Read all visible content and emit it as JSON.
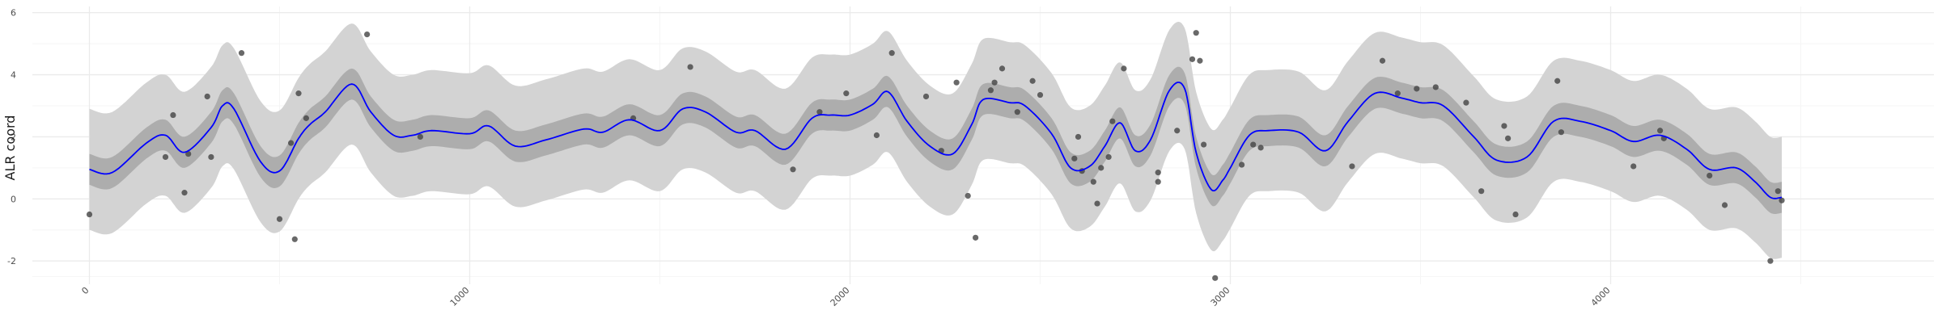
{
  "chart_data": {
    "type": "line",
    "title": "",
    "xlabel": "",
    "ylabel": "ALR coord",
    "xlim": [
      -150,
      4850
    ],
    "ylim": [
      -2.75,
      6.2
    ],
    "x_ticks": [
      0,
      1000,
      2000,
      3000,
      4000
    ],
    "y_ticks": [
      -2,
      0,
      2,
      4,
      6
    ],
    "grid": true,
    "colors": {
      "mean_line": "#0000ff",
      "inner_band": "#adadad",
      "outer_band": "#d3d3d3",
      "points": "#444444",
      "grid_major": "#ebebeb",
      "grid_minor": "#f5f5f5"
    },
    "mean": {
      "x": [
        0,
        60,
        150,
        200,
        250,
        320,
        350,
        380,
        450,
        500,
        550,
        580,
        620,
        690,
        740,
        800,
        850,
        900,
        1000,
        1050,
        1120,
        1200,
        1300,
        1350,
        1420,
        1500,
        1560,
        1620,
        1700,
        1750,
        1830,
        1900,
        1950,
        2000,
        2060,
        2100,
        2150,
        2210,
        2270,
        2320,
        2350,
        2420,
        2460,
        2530,
        2580,
        2630,
        2670,
        2710,
        2750,
        2790,
        2840,
        2880,
        2910,
        2950,
        2980,
        3000,
        3050,
        3100,
        3180,
        3250,
        3310,
        3380,
        3450,
        3500,
        3560,
        3640,
        3700,
        3780,
        3850,
        3920,
        4000,
        4060,
        4130,
        4200,
        4260,
        4330,
        4380,
        4420,
        4450
      ],
      "y": [
        0.95,
        0.85,
        1.8,
        2.05,
        1.5,
        2.3,
        3.0,
        2.9,
        1.2,
        0.9,
        1.95,
        2.4,
        2.8,
        3.7,
        2.8,
        2.05,
        2.05,
        2.2,
        2.1,
        2.35,
        1.7,
        1.9,
        2.25,
        2.15,
        2.55,
        2.2,
        2.9,
        2.8,
        2.15,
        2.2,
        1.6,
        2.6,
        2.7,
        2.7,
        3.05,
        3.45,
        2.5,
        1.7,
        1.45,
        2.4,
        3.2,
        3.1,
        3.0,
        2.1,
        1.0,
        1.05,
        1.7,
        2.45,
        1.55,
        1.9,
        3.5,
        3.55,
        1.5,
        0.3,
        0.6,
        1.0,
        2.05,
        2.2,
        2.15,
        1.55,
        2.5,
        3.4,
        3.25,
        3.1,
        3.0,
        2.0,
        1.25,
        1.35,
        2.5,
        2.5,
        2.2,
        1.85,
        2.05,
        1.6,
        0.95,
        1.0,
        0.55,
        0.05,
        0.05
      ]
    },
    "inner_band_halfwidth": 0.5,
    "outer_band_halfwidth": 1.95,
    "points": [
      {
        "x": 0,
        "y": -0.5
      },
      {
        "x": 200,
        "y": 1.35
      },
      {
        "x": 220,
        "y": 2.7
      },
      {
        "x": 250,
        "y": 0.2
      },
      {
        "x": 260,
        "y": 1.45
      },
      {
        "x": 310,
        "y": 3.3
      },
      {
        "x": 320,
        "y": 1.35
      },
      {
        "x": 400,
        "y": 4.7
      },
      {
        "x": 500,
        "y": -0.65
      },
      {
        "x": 530,
        "y": 1.8
      },
      {
        "x": 540,
        "y": -1.3
      },
      {
        "x": 550,
        "y": 3.4
      },
      {
        "x": 570,
        "y": 2.6
      },
      {
        "x": 730,
        "y": 5.3
      },
      {
        "x": 870,
        "y": 2.0
      },
      {
        "x": 1430,
        "y": 2.6
      },
      {
        "x": 1580,
        "y": 4.25
      },
      {
        "x": 1850,
        "y": 0.95
      },
      {
        "x": 1920,
        "y": 2.8
      },
      {
        "x": 1990,
        "y": 3.4
      },
      {
        "x": 2070,
        "y": 2.05
      },
      {
        "x": 2110,
        "y": 4.7
      },
      {
        "x": 2200,
        "y": 3.3
      },
      {
        "x": 2240,
        "y": 1.55
      },
      {
        "x": 2280,
        "y": 3.75
      },
      {
        "x": 2310,
        "y": 0.1
      },
      {
        "x": 2330,
        "y": -1.25
      },
      {
        "x": 2370,
        "y": 3.5
      },
      {
        "x": 2380,
        "y": 3.75
      },
      {
        "x": 2400,
        "y": 4.2
      },
      {
        "x": 2440,
        "y": 2.8
      },
      {
        "x": 2480,
        "y": 3.8
      },
      {
        "x": 2500,
        "y": 3.35
      },
      {
        "x": 2590,
        "y": 1.3
      },
      {
        "x": 2600,
        "y": 2.0
      },
      {
        "x": 2610,
        "y": 0.9
      },
      {
        "x": 2640,
        "y": 0.55
      },
      {
        "x": 2650,
        "y": -0.15
      },
      {
        "x": 2660,
        "y": 1.0
      },
      {
        "x": 2680,
        "y": 1.35
      },
      {
        "x": 2690,
        "y": 2.5
      },
      {
        "x": 2720,
        "y": 4.2
      },
      {
        "x": 2810,
        "y": 0.55
      },
      {
        "x": 2810,
        "y": 0.85
      },
      {
        "x": 2860,
        "y": 2.2
      },
      {
        "x": 2900,
        "y": 4.5
      },
      {
        "x": 2910,
        "y": 5.35
      },
      {
        "x": 2920,
        "y": 4.45
      },
      {
        "x": 2930,
        "y": 1.75
      },
      {
        "x": 2960,
        "y": -2.55
      },
      {
        "x": 3030,
        "y": 1.1
      },
      {
        "x": 3060,
        "y": 1.75
      },
      {
        "x": 3080,
        "y": 1.65
      },
      {
        "x": 3320,
        "y": 1.05
      },
      {
        "x": 3400,
        "y": 4.45
      },
      {
        "x": 3440,
        "y": 3.4
      },
      {
        "x": 3490,
        "y": 3.55
      },
      {
        "x": 3540,
        "y": 3.6
      },
      {
        "x": 3620,
        "y": 3.1
      },
      {
        "x": 3660,
        "y": 0.25
      },
      {
        "x": 3720,
        "y": 2.35
      },
      {
        "x": 3730,
        "y": 1.95
      },
      {
        "x": 3750,
        "y": -0.5
      },
      {
        "x": 3860,
        "y": 3.8
      },
      {
        "x": 3870,
        "y": 2.15
      },
      {
        "x": 4060,
        "y": 1.05
      },
      {
        "x": 4130,
        "y": 2.2
      },
      {
        "x": 4140,
        "y": 1.95
      },
      {
        "x": 4260,
        "y": 0.75
      },
      {
        "x": 4300,
        "y": -0.2
      },
      {
        "x": 4420,
        "y": -2.0
      },
      {
        "x": 4440,
        "y": 0.25
      },
      {
        "x": 4450,
        "y": -0.05
      }
    ]
  }
}
